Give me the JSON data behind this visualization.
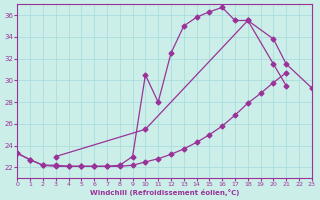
{
  "xlabel": "Windchill (Refroidissement éolien,°C)",
  "xlim": [
    0,
    23
  ],
  "ylim": [
    21,
    37
  ],
  "xticks": [
    0,
    1,
    2,
    3,
    4,
    5,
    6,
    7,
    8,
    9,
    10,
    11,
    12,
    13,
    14,
    15,
    16,
    17,
    18,
    19,
    20,
    21,
    22,
    23
  ],
  "yticks": [
    22,
    24,
    26,
    28,
    30,
    32,
    34,
    36
  ],
  "bg_color": "#cceee8",
  "line_color": "#993399",
  "grid_color": "#aadddd",
  "line1_x": [
    0,
    1,
    2,
    3,
    4,
    5,
    6,
    7,
    8,
    9,
    10,
    11,
    12,
    13,
    14,
    15,
    16,
    17,
    18,
    20,
    21
  ],
  "line1_y": [
    23.3,
    22.7,
    22.2,
    22.2,
    22.1,
    22.1,
    22.1,
    22.1,
    22.2,
    23.0,
    30.5,
    28.0,
    32.5,
    35.0,
    35.8,
    36.3,
    36.7,
    35.5,
    35.5,
    31.5,
    29.5
  ],
  "line2_x": [
    3,
    10,
    18,
    20,
    21,
    23
  ],
  "line2_y": [
    23.0,
    25.5,
    35.5,
    33.8,
    31.5,
    29.3
  ],
  "line3_x": [
    0,
    1,
    2,
    3,
    4,
    5,
    6,
    7,
    8,
    9,
    10,
    11,
    12,
    13,
    14,
    15,
    16,
    17,
    18,
    19,
    20,
    21
  ],
  "line3_y": [
    23.3,
    22.7,
    22.2,
    22.1,
    22.1,
    22.1,
    22.1,
    22.1,
    22.1,
    22.2,
    22.5,
    22.8,
    23.2,
    23.7,
    24.3,
    25.0,
    25.8,
    26.8,
    27.9,
    28.8,
    29.8,
    30.7
  ]
}
